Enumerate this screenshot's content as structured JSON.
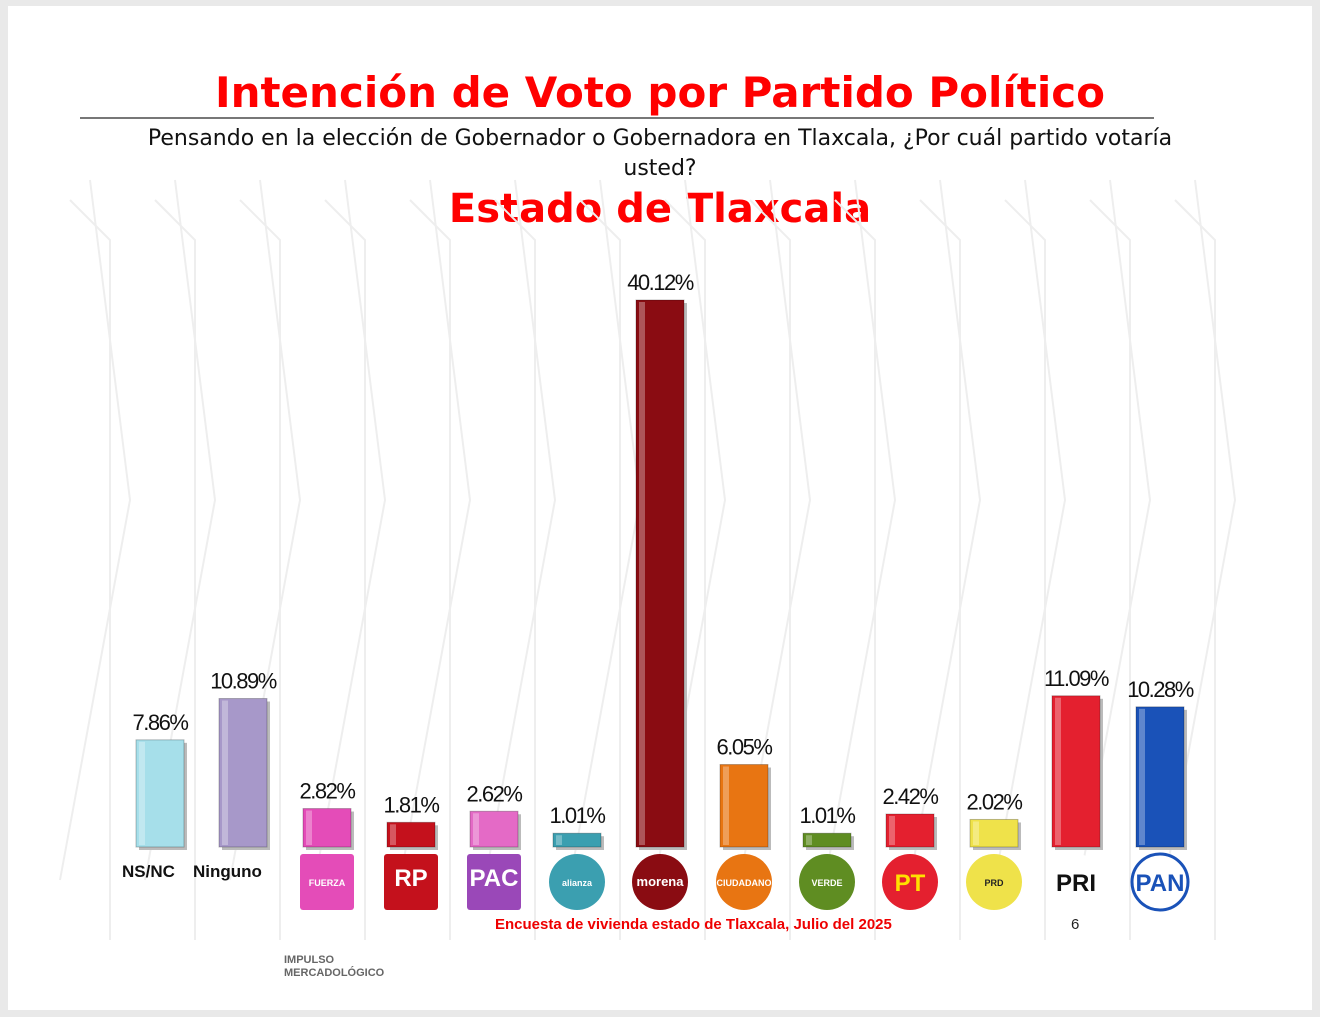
{
  "header": {
    "title": "Intención de Voto por Partido Político",
    "question": "Pensando en la elección de Gobernador o Gobernadora en Tlaxcala, ¿Por cuál partido votaría usted?",
    "subtitle": "Estado de Tlaxcala"
  },
  "footer": {
    "source": "Encuesta de vivienda estado de Tlaxcala, Julio   del 2025",
    "page": "6",
    "brand_line1": "IMPULSO",
    "brand_line2": "MERCADOLÓGICO"
  },
  "chart_data": {
    "type": "bar",
    "title": "Estado de Tlaxcala",
    "xlabel": "",
    "ylabel": "",
    "ylim": [
      0,
      42
    ],
    "grid": false,
    "categories": [
      "NS/NC",
      "Ninguno",
      "FUERZA MÉXICO",
      "RSP",
      "PAC",
      "alianza",
      "morena",
      "MOVIMIENTO CIUDADANO",
      "VERDE",
      "PT",
      "PRD",
      "PRI",
      "PAN"
    ],
    "values": [
      7.86,
      10.89,
      2.82,
      1.81,
      2.62,
      1.01,
      40.12,
      6.05,
      1.01,
      2.42,
      2.02,
      11.09,
      10.28
    ],
    "labels": [
      "7.86%",
      "10.89%",
      "2.82%",
      "1.81%",
      "2.62%",
      "1.01%",
      "40.12%",
      "6.05%",
      "1.01%",
      "2.42%",
      "2.02%",
      "11.09%",
      "10.28%"
    ],
    "colors": [
      "#a6dfea",
      "#a798c9",
      "#e44cb8",
      "#c4111c",
      "#e46ac6",
      "#3b9fb0",
      "#8a0c12",
      "#e87512",
      "#5f8d22",
      "#e4202f",
      "#efe24a",
      "#e4202f",
      "#1a52b8"
    ]
  }
}
